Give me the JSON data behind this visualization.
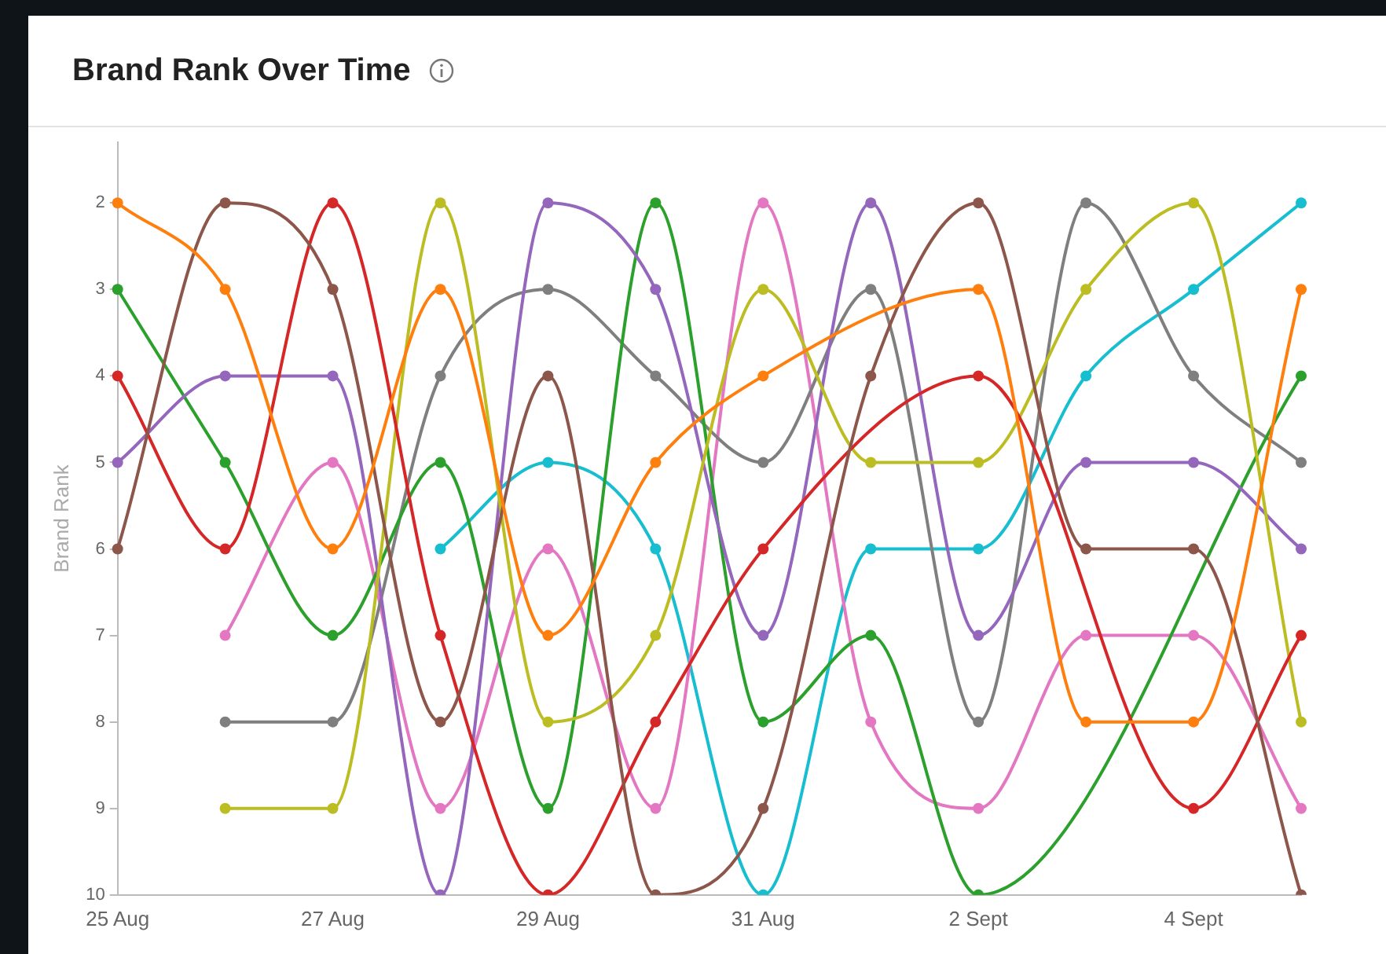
{
  "chart_data": {
    "type": "line",
    "title": "Brand Rank Over Time",
    "ylabel": "Brand Rank",
    "categories": [
      "25 Aug",
      null,
      "27 Aug",
      null,
      "29 Aug",
      null,
      "31 Aug",
      null,
      "2 Sept",
      null,
      "4 Sept",
      null
    ],
    "ylim": [
      10,
      1.3
    ],
    "yticks": [
      2,
      3,
      4,
      5,
      6,
      7,
      8,
      9,
      10
    ],
    "grid": false,
    "legend": false,
    "marker": "circle",
    "line_style": "solid",
    "series": [
      {
        "color": "#ff7f0e",
        "values": [
          2,
          3,
          6,
          3,
          7,
          5,
          4,
          null,
          3,
          8,
          8,
          3
        ]
      },
      {
        "color": "#8c564b",
        "values": [
          6,
          2,
          3,
          8,
          4,
          10,
          9,
          4,
          2,
          6,
          6,
          10
        ]
      },
      {
        "color": "#d62728",
        "values": [
          4,
          6,
          2,
          7,
          10,
          8,
          6,
          null,
          4,
          null,
          9,
          7
        ]
      },
      {
        "color": "#bcbd22",
        "values": [
          null,
          9,
          9,
          2,
          8,
          7,
          3,
          5,
          5,
          3,
          2,
          8
        ]
      },
      {
        "color": "#9467bd",
        "values": [
          5,
          4,
          4,
          10,
          2,
          3,
          7,
          2,
          7,
          5,
          5,
          6
        ]
      },
      {
        "color": "#2ca02c",
        "values": [
          3,
          5,
          7,
          5,
          9,
          2,
          8,
          7,
          10,
          null,
          null,
          4
        ]
      },
      {
        "color": "#7f7f7f",
        "values": [
          null,
          8,
          8,
          4,
          3,
          4,
          5,
          3,
          8,
          2,
          4,
          5
        ]
      },
      {
        "color": "#e377c2",
        "values": [
          null,
          7,
          5,
          9,
          6,
          9,
          2,
          8,
          9,
          7,
          7,
          9
        ]
      },
      {
        "color": "#17becf",
        "values": [
          null,
          null,
          null,
          6,
          5,
          6,
          10,
          6,
          6,
          4,
          3,
          2
        ]
      }
    ]
  }
}
